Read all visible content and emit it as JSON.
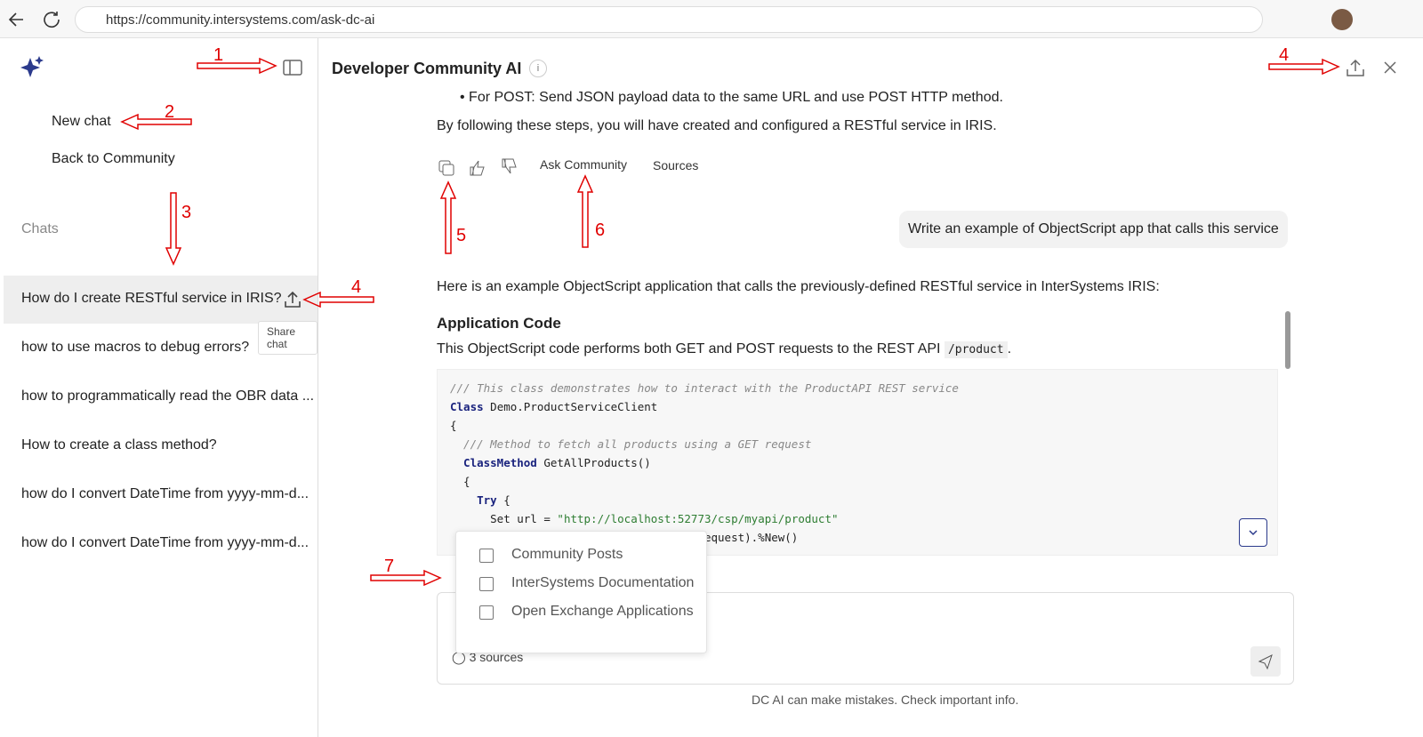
{
  "browser": {
    "url": "https://community.intersystems.com/ask-dc-ai"
  },
  "sidebar": {
    "new_chat": "New chat",
    "back": "Back to Community",
    "chats_heading": "Chats",
    "chats": [
      "How do I create RESTful service in IRIS?",
      "how to use macros to debug errors?",
      "how to programmatically read the OBR data ...",
      "How to create a class method?",
      "how do I convert DateTime from yyyy-mm-d...",
      "how do I convert DateTime from yyyy-mm-d..."
    ],
    "tooltip": "Share chat"
  },
  "header": {
    "title": "Developer Community AI"
  },
  "conversation": {
    "bullet": "For POST: Send JSON payload data to the same URL and use POST HTTP method.",
    "summary": "By following these steps, you will have created and configured a RESTful service in IRIS.",
    "actions": [
      "Ask Community",
      "Sources"
    ],
    "user_message": "Write an example of ObjectScript app that calls this service",
    "intro": "Here is an example ObjectScript application that calls the previously-defined RESTful service in InterSystems IRIS:",
    "heading": "Application Code",
    "description": "This ObjectScript code performs both GET and POST requests to the REST API",
    "inline_code": "/product",
    "description_end": ".",
    "code": [
      [
        {
          "text": "/// This class demonstrates how to interact with the ProductAPI REST service",
          "color": "#888888"
        }
      ],
      [
        {
          "text": "Class",
          "color": "#1a237e"
        },
        {
          "text": " Demo.ProductServiceClient",
          "color": "#222222"
        }
      ],
      [
        {
          "text": "{",
          "color": "#222222"
        }
      ],
      [
        {
          "text": "  /// Method to fetch all products using a GET request",
          "color": "#888888"
        }
      ],
      [
        {
          "text": "  ClassMethod",
          "color": "#1a237e"
        },
        {
          "text": " GetAllProducts()",
          "color": "#222222"
        }
      ],
      [
        {
          "text": "  {",
          "color": "#222222"
        }
      ],
      [
        {
          "text": "    Try",
          "color": "#1a237e"
        },
        {
          "text": " {",
          "color": "#222222"
        }
      ],
      [
        {
          "text": "      Set url = ",
          "color": "#222222"
        },
        {
          "text": "\"http://localhost:52773/csp/myapi/product\"",
          "color": "#2e7d32"
        }
      ],
      [
        {
          "text": "      Set request = ##class(%Net.HttpRequest).%New()",
          "color": "#222222"
        }
      ]
    ]
  },
  "sources_menu": [
    "Community Posts",
    "InterSystems Documentation",
    "Open Exchange Applications"
  ],
  "composer": {
    "sources": "3 sources"
  },
  "footer": "DC AI can make mistakes. Check important info.",
  "annotations": [
    "1",
    "2",
    "3",
    "4",
    "4",
    "5",
    "6",
    "7"
  ]
}
